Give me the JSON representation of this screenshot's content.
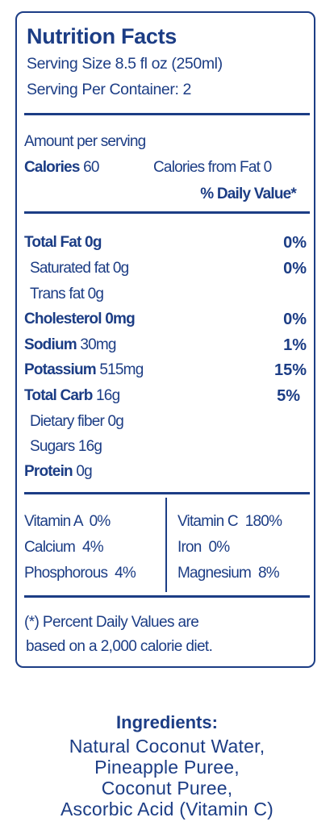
{
  "label": {
    "title": "Nutrition Facts",
    "serving_size": "Serving Size 8.5 fl oz (250ml)",
    "servings_per_container": "Serving Per Container: 2",
    "amount_per_serving": "Amount per serving",
    "calories_label": "Calories",
    "calories_value": "60",
    "calories_from_fat": "Calories from Fat 0",
    "daily_value_header": "% Daily Value*"
  },
  "nutrients": [
    {
      "name": "Total Fat",
      "amount": "0g",
      "dv": "0%"
    },
    {
      "name": "Saturated fat",
      "amount": "0g",
      "dv": "0%"
    },
    {
      "name": "Trans fat",
      "amount": "0g",
      "dv": ""
    },
    {
      "name": "Cholesterol",
      "amount": "0mg",
      "dv": "0%"
    },
    {
      "name": "Sodium",
      "amount": "30mg",
      "dv": "1%"
    },
    {
      "name": "Potassium",
      "amount": "515mg",
      "dv": "15%"
    },
    {
      "name": "Total Carb",
      "amount": "16g",
      "dv": "5%"
    },
    {
      "name": "Dietary fiber",
      "amount": "0g",
      "dv": ""
    },
    {
      "name": "Sugars",
      "amount": "16g",
      "dv": ""
    },
    {
      "name": "Protein",
      "amount": "0g",
      "dv": ""
    }
  ],
  "vitamins": {
    "left": [
      "Vitamin A  0%",
      "Calcium  4%",
      "Phosphorous  4%"
    ],
    "right": [
      "Vitamin C  180%",
      "Iron  0%",
      "Magnesium  8%"
    ]
  },
  "footnote": [
    "(*) Percent Daily Values are",
    "based on a 2,000 calorie diet."
  ],
  "ingredients": {
    "title": "Ingredients:",
    "lines": [
      "Natural Coconut Water,",
      "Pineapple Puree,",
      "Coconut Puree,",
      "Ascorbic Acid (Vitamin C)"
    ]
  },
  "colors": {
    "text": "#1c3d85",
    "background": "#ffffff"
  }
}
